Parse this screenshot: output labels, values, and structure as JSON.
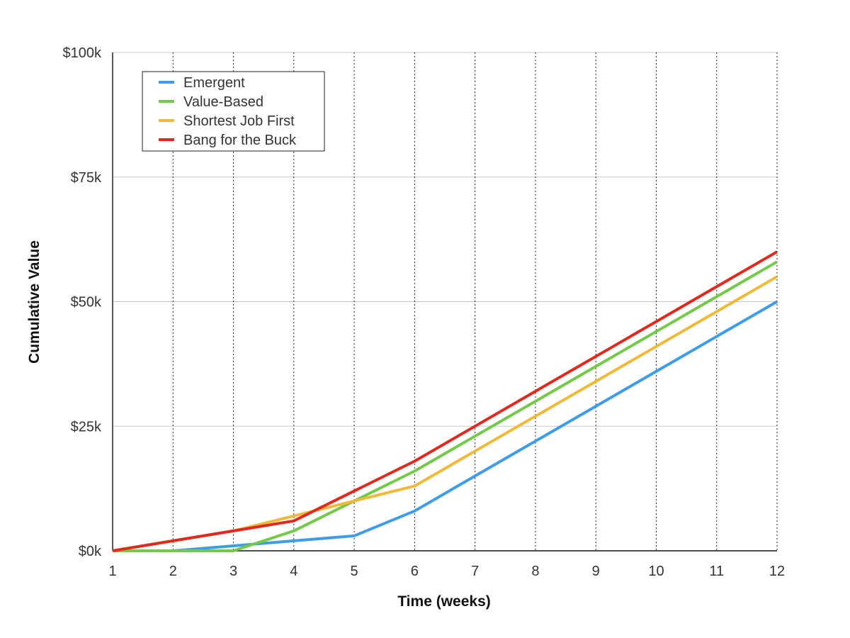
{
  "chart_data": {
    "type": "line",
    "xlabel": "Time (weeks)",
    "ylabel": "Cumulative Value",
    "x": [
      1,
      2,
      3,
      4,
      5,
      6,
      7,
      8,
      9,
      10,
      11,
      12
    ],
    "x_tick_labels": [
      "1",
      "2",
      "3",
      "4",
      "5",
      "6",
      "7",
      "8",
      "9",
      "10",
      "11",
      "12"
    ],
    "xlim": [
      1,
      12
    ],
    "ylim": [
      0,
      100000
    ],
    "y_ticks": [
      0,
      25000,
      50000,
      75000,
      100000
    ],
    "y_tick_labels": [
      "$0k",
      "$25k",
      "$50k",
      "$75k",
      "$100k"
    ],
    "grid": {
      "horizontal": true,
      "vertical": true,
      "vertical_style": "dotted"
    },
    "legend_position": "top-left",
    "series": [
      {
        "name": "Emergent",
        "color": "#3f9ce8",
        "values": [
          0,
          0,
          1000,
          2000,
          3000,
          8000,
          15000,
          22000,
          29000,
          36000,
          43000,
          50000
        ]
      },
      {
        "name": "Value-Based",
        "color": "#74c94a",
        "values": [
          0,
          0,
          0,
          4000,
          10000,
          16000,
          23000,
          30000,
          37000,
          44000,
          51000,
          58000
        ]
      },
      {
        "name": "Shortest Job First",
        "color": "#f0b93a",
        "values": [
          0,
          2000,
          4000,
          7000,
          10000,
          13000,
          20000,
          27000,
          34000,
          41000,
          48000,
          55000
        ]
      },
      {
        "name": "Bang for the Buck",
        "color": "#e02a1f",
        "values": [
          0,
          2000,
          4000,
          6000,
          12000,
          18000,
          25000,
          32000,
          39000,
          46000,
          53000,
          60000
        ]
      }
    ]
  }
}
